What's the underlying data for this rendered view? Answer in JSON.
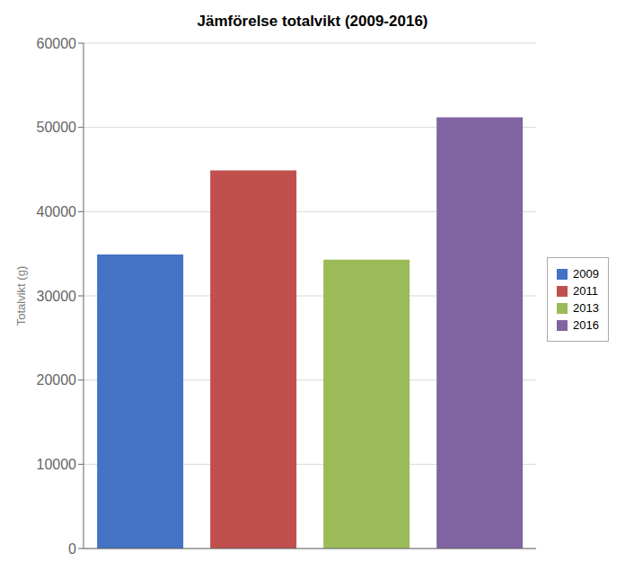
{
  "chart_data": {
    "type": "bar",
    "title": "Jämförelse totalvikt (2009-2016)",
    "ylabel": "Totalvikt (g)",
    "categories": [
      "2009",
      "2011",
      "2013",
      "2016"
    ],
    "values": [
      34900,
      44900,
      34300,
      51200
    ],
    "colors": [
      "#4472C4",
      "#C0504D",
      "#9BBB59",
      "#8064A2"
    ],
    "ylim": [
      0,
      60000
    ],
    "yticks": [
      0,
      10000,
      20000,
      30000,
      40000,
      50000,
      60000
    ],
    "grid": true,
    "legend": "right",
    "tick_labels": "y"
  }
}
